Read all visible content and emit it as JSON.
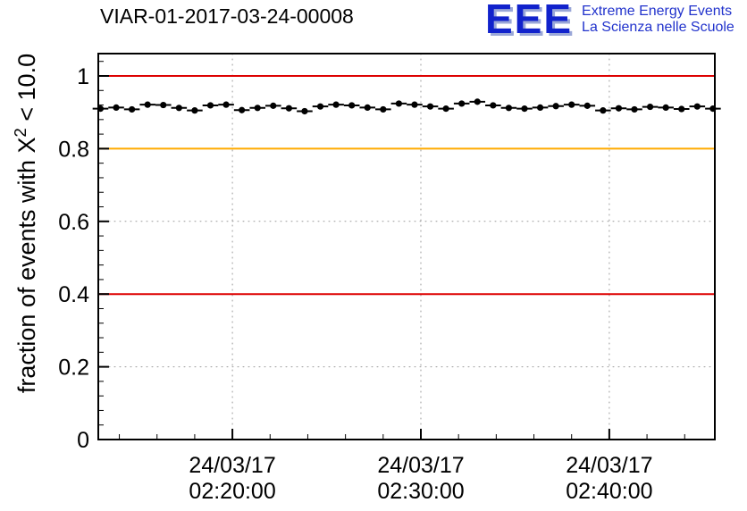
{
  "header": {
    "title": "VIAR-01-2017-03-24-00008"
  },
  "logo": {
    "acronym": "EEE",
    "line1": "Extreme Energy Events",
    "line2": "La Scienza nelle Scuole",
    "color": "#2233cc"
  },
  "chart_data": {
    "type": "scatter",
    "title": "VIAR-01-2017-03-24-00008",
    "xlabel": "",
    "ylabel": {
      "prefix": "fraction of events with X",
      "sup": "2",
      "suffix": " < 10.0"
    },
    "ylim": [
      0,
      1.0614
    ],
    "x_range_seconds": [
      773,
      2736
    ],
    "grid": true,
    "grid_color": "#999999",
    "y_ticks": [
      {
        "value": 0,
        "label": "0"
      },
      {
        "value": 0.2,
        "label": "0.2"
      },
      {
        "value": 0.4,
        "label": "0.4"
      },
      {
        "value": 0.6,
        "label": "0.6"
      },
      {
        "value": 0.8,
        "label": "0.8"
      },
      {
        "value": 1,
        "label": "1"
      }
    ],
    "x_ticks": [
      {
        "seconds": 1200,
        "date": "24/03/17",
        "time": "02:20:00"
      },
      {
        "seconds": 1800,
        "date": "24/03/17",
        "time": "02:30:00"
      },
      {
        "seconds": 2400,
        "date": "24/03/17",
        "time": "02:40:00"
      }
    ],
    "reference_lines": [
      {
        "value": 1.0,
        "color": "#dd0000"
      },
      {
        "value": 0.8,
        "color": "#ffaa00"
      },
      {
        "value": 0.4,
        "color": "#dd0000"
      }
    ],
    "series": [
      {
        "name": "fraction of events with chi2 < 10",
        "marker": "filled-circle",
        "color": "#000000",
        "start_seconds": 780,
        "step_seconds": 50,
        "x_error_seconds": 25,
        "y_error": 0.004,
        "values": [
          0.91,
          0.913,
          0.908,
          0.921,
          0.92,
          0.912,
          0.905,
          0.919,
          0.921,
          0.906,
          0.912,
          0.918,
          0.911,
          0.903,
          0.916,
          0.921,
          0.919,
          0.913,
          0.908,
          0.924,
          0.921,
          0.916,
          0.91,
          0.924,
          0.929,
          0.919,
          0.912,
          0.91,
          0.913,
          0.917,
          0.921,
          0.918,
          0.905,
          0.911,
          0.908,
          0.915,
          0.913,
          0.909,
          0.916,
          0.91
        ]
      }
    ]
  }
}
